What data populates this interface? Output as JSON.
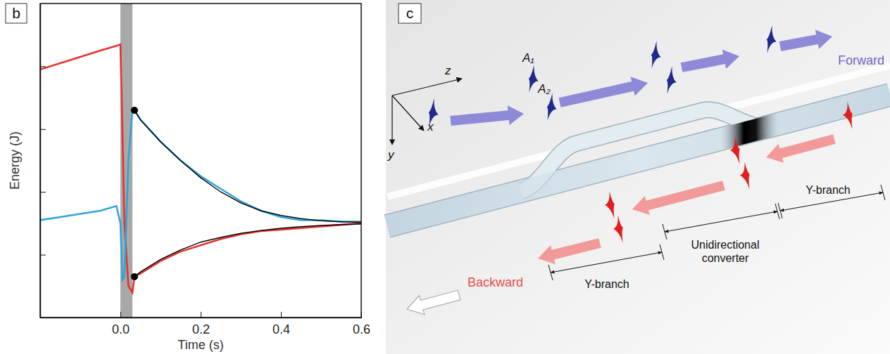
{
  "chart_data": {
    "type": "line",
    "panel_label": "b",
    "x_label": "Time (s)",
    "y_label": "Energy (J)",
    "xlim": [
      -0.2,
      0.6
    ],
    "xticks": [
      {
        "value": 0,
        "label": "0.0"
      },
      {
        "value": 0.2,
        "label": "0.2"
      },
      {
        "value": 0.4,
        "label": "0.4"
      },
      {
        "value": 0.6,
        "label": "0.6"
      }
    ],
    "ylim": [
      0,
      1
    ],
    "yticks": [
      0.2,
      0.4,
      0.6,
      0.8
    ],
    "tick_labels": "x",
    "shaded_interval": [
      0,
      0.03
    ],
    "series": [
      {
        "color": "#e8312f",
        "line_style": "solid",
        "x": [
          -0.2,
          -0.15,
          -0.1,
          -0.05,
          -0.01,
          0,
          0.005,
          0.01,
          0.02,
          0.03,
          0.035,
          0.05,
          0.1,
          0.15,
          0.2,
          0.25,
          0.3,
          0.35,
          0.4,
          0.45,
          0.5,
          0.55,
          0.6
        ],
        "values": [
          0.79,
          0.81,
          0.83,
          0.85,
          0.865,
          0.87,
          0.6,
          0.3,
          0.1,
          0.08,
          0.13,
          0.14,
          0.18,
          0.21,
          0.23,
          0.25,
          0.265,
          0.275,
          0.28,
          0.285,
          0.29,
          0.295,
          0.3
        ]
      },
      {
        "color": "#2fa4d8",
        "line_style": "solid",
        "x": [
          -0.2,
          -0.15,
          -0.1,
          -0.05,
          -0.01,
          0,
          0.005,
          0.01,
          0.02,
          0.03,
          0.035,
          0.05,
          0.1,
          0.15,
          0.2,
          0.25,
          0.3,
          0.35,
          0.4,
          0.45,
          0.5,
          0.55,
          0.6
        ],
        "values": [
          0.31,
          0.32,
          0.33,
          0.34,
          0.355,
          0.3,
          0.12,
          0.13,
          0.5,
          0.66,
          0.66,
          0.63,
          0.56,
          0.5,
          0.45,
          0.41,
          0.37,
          0.34,
          0.32,
          0.31,
          0.31,
          0.305,
          0.305
        ]
      },
      {
        "color": "#000000",
        "line_style": "solid",
        "x": [
          0.035,
          0.05,
          0.1,
          0.15,
          0.2,
          0.25,
          0.3,
          0.35,
          0.4,
          0.45,
          0.5,
          0.55,
          0.6
        ],
        "values": [
          0.66,
          0.63,
          0.56,
          0.5,
          0.445,
          0.4,
          0.365,
          0.34,
          0.325,
          0.315,
          0.308,
          0.305,
          0.303
        ]
      },
      {
        "color": "#000000",
        "line_style": "solid",
        "x": [
          0.035,
          0.05,
          0.1,
          0.15,
          0.2,
          0.25,
          0.3,
          0.35,
          0.4,
          0.45,
          0.5,
          0.55,
          0.6
        ],
        "values": [
          0.13,
          0.145,
          0.185,
          0.215,
          0.24,
          0.255,
          0.268,
          0.277,
          0.284,
          0.289,
          0.293,
          0.296,
          0.298
        ]
      },
      {
        "type": "scatter",
        "marker": "circle",
        "color": "#000000",
        "x": [
          0.035,
          0.035
        ],
        "values": [
          0.66,
          0.13
        ]
      }
    ]
  },
  "diagram": {
    "panel_label": "c",
    "axes": [
      "z",
      "x",
      "y"
    ],
    "pulse_labels": [
      "A₁",
      "A₂"
    ],
    "forward": "Forward",
    "backward": "Backward",
    "sections": [
      "Y-branch",
      "Unidirectional converter",
      "Y-branch"
    ]
  }
}
